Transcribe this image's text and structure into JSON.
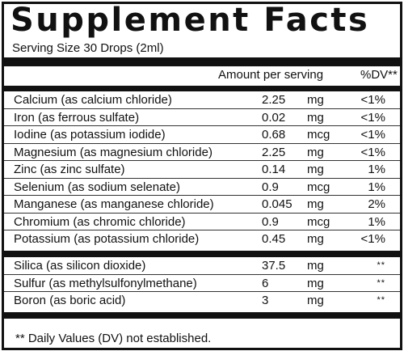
{
  "title": "Supplement Facts",
  "serving_size": "Serving Size 30 Drops (2ml)",
  "header": {
    "amount": "Amount per serving",
    "dv": "%DV**"
  },
  "minerals": [
    {
      "name": "Calcium (as calcium chloride)",
      "amount": "2.25",
      "unit": "mg",
      "dv": "<1%"
    },
    {
      "name": "Iron (as ferrous sulfate)",
      "amount": "0.02",
      "unit": "mg",
      "dv": "<1%"
    },
    {
      "name": "Iodine (as potassium iodide)",
      "amount": "0.68",
      "unit": "mcg",
      "dv": "<1%"
    },
    {
      "name": "Magnesium (as magnesium chloride)",
      "amount": "2.25",
      "unit": "mg",
      "dv": "<1%"
    },
    {
      "name": "Zinc (as zinc sulfate)",
      "amount": "0.14",
      "unit": "mg",
      "dv": "1%"
    },
    {
      "name": "Selenium (as sodium selenate)",
      "amount": "0.9",
      "unit": "mcg",
      "dv": "1%"
    },
    {
      "name": "Manganese (as manganese chloride)",
      "amount": "0.045",
      "unit": "mg",
      "dv": "2%"
    },
    {
      "name": "Chromium (as chromic chloride)",
      "amount": "0.9",
      "unit": "mcg",
      "dv": "1%"
    },
    {
      "name": "Potassium (as potassium chloride)",
      "amount": "0.45",
      "unit": "mg",
      "dv": "<1%"
    }
  ],
  "others": [
    {
      "name": "Silica (as silicon dioxide)",
      "amount": "37.5",
      "unit": "mg",
      "dv": "**"
    },
    {
      "name": "Sulfur (as methylsulfonylmethane)",
      "amount": "6",
      "unit": "mg",
      "dv": "**"
    },
    {
      "name": "Boron (as boric acid)",
      "amount": "3",
      "unit": "mg",
      "dv": "**"
    }
  ],
  "footnote": "** Daily Values (DV) not established."
}
